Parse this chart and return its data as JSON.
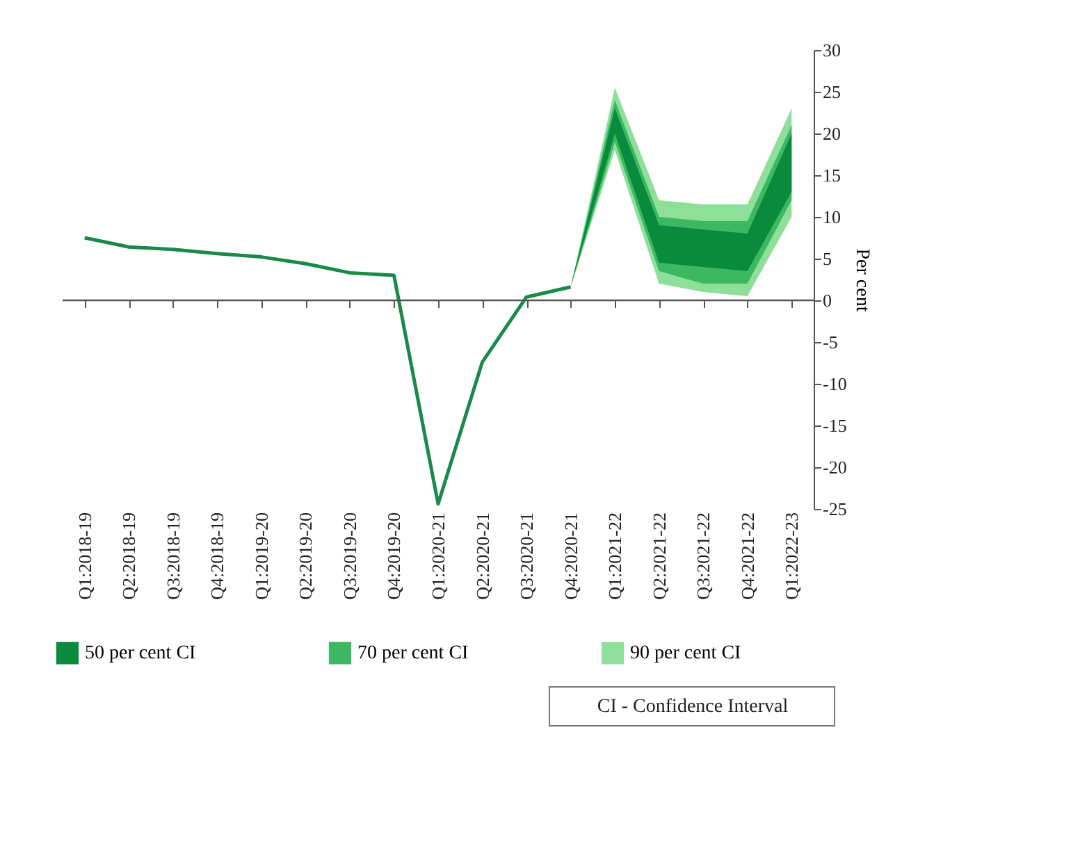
{
  "chart_data": {
    "type": "line",
    "ylabel": "Per cent",
    "categories": [
      "Q1:2018-19",
      "Q2:2018-19",
      "Q3:2018-19",
      "Q4:2018-19",
      "Q1:2019-20",
      "Q2:2019-20",
      "Q3:2019-20",
      "Q4:2019-20",
      "Q1:2020-21",
      "Q2:2020-21",
      "Q3:2020-21",
      "Q4:2020-21",
      "Q1:2021-22",
      "Q2:2021-22",
      "Q3:2021-22",
      "Q4:2021-22",
      "Q1:2022-23"
    ],
    "series": [
      {
        "type": "line",
        "color": "#1a8a4a",
        "values": [
          7.5,
          6.4,
          6.1,
          5.6,
          5.2,
          4.4,
          3.3,
          3.0,
          -24.4,
          -7.4,
          0.4,
          1.6,
          null,
          null,
          null,
          null,
          null
        ]
      },
      {
        "type": "line",
        "name": "90 per cent CI",
        "color": "#8ddf9a",
        "values": [
          null,
          null,
          null,
          null,
          null,
          null,
          null,
          null,
          null,
          null,
          null,
          null,
          null,
          null,
          null,
          null,
          null
        ],
        "lower": [
          null,
          null,
          null,
          null,
          null,
          null,
          null,
          null,
          null,
          null,
          null,
          1.6,
          18,
          2,
          1,
          0.5,
          10
        ],
        "upper": [
          null,
          null,
          null,
          null,
          null,
          null,
          null,
          null,
          null,
          null,
          null,
          1.6,
          25.5,
          12,
          11.5,
          11.5,
          23
        ]
      },
      {
        "type": "line",
        "name": "70 per cent CI",
        "color": "#3cb863",
        "values": [
          null,
          null,
          null,
          null,
          null,
          null,
          null,
          null,
          null,
          null,
          null,
          null,
          null,
          null,
          null,
          null,
          null
        ],
        "lower": [
          null,
          null,
          null,
          null,
          null,
          null,
          null,
          null,
          null,
          null,
          null,
          1.6,
          19,
          3.5,
          2,
          2,
          12
        ],
        "upper": [
          null,
          null,
          null,
          null,
          null,
          null,
          null,
          null,
          null,
          null,
          null,
          1.6,
          24,
          10,
          9.5,
          9.5,
          21
        ]
      },
      {
        "type": "line",
        "name": "50 per cent CI",
        "color": "#0a8a3c",
        "values": [
          null,
          null,
          null,
          null,
          null,
          null,
          null,
          null,
          null,
          null,
          null,
          null,
          null,
          null,
          null,
          null,
          null
        ],
        "lower": [
          null,
          null,
          null,
          null,
          null,
          null,
          null,
          null,
          null,
          null,
          null,
          1.6,
          20,
          4.5,
          4,
          3.5,
          13
        ],
        "upper": [
          null,
          null,
          null,
          null,
          null,
          null,
          null,
          null,
          null,
          null,
          null,
          1.6,
          23,
          9,
          8.5,
          8,
          20
        ]
      }
    ],
    "ylim": [
      -25,
      30
    ],
    "yticks": [
      -25,
      -20,
      -15,
      -10,
      -5,
      0,
      5,
      10,
      15,
      20,
      25,
      30
    ],
    "grid": false,
    "legend": "bottom",
    "ref_lines": [
      {
        "axis": "y",
        "value": 0,
        "color": "#555555"
      }
    ],
    "annotations": [
      "CI - Confidence Interval"
    ]
  }
}
